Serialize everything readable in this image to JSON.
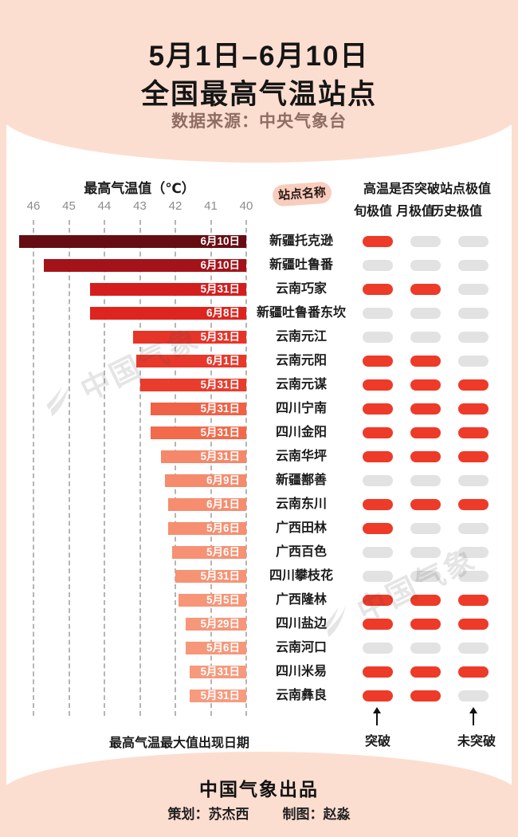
{
  "page": {
    "bg_color": "#FCDED0",
    "panel_color": "#FFFFFF"
  },
  "header": {
    "title_line1": "5月1日–6月10日",
    "title_line2": "全国最高气温站点",
    "subtitle": "数据来源：中央气象台"
  },
  "chart": {
    "axis_title": "最高气温值（℃）",
    "station_header": "站点名称",
    "breakthrough_header": "高温是否突破站点极值",
    "breakthrough_cols": [
      "旬极值",
      "月极值",
      "历史极值"
    ],
    "caption": "最高气温最大值出现日期",
    "legend": {
      "break": "突破",
      "no_break": "未突破"
    }
  },
  "chart_data": {
    "type": "bar",
    "orientation": "horizontal",
    "title": "5月1日–6月10日 全国最高气温站点",
    "xlabel": "最高气温值（℃）",
    "unit": "℃",
    "axis_ticks": [
      46,
      45,
      44,
      43,
      42,
      41,
      40
    ],
    "axis_range": [
      46,
      40
    ],
    "grid": "dashed-vertical",
    "pill_on_color": "#EE3A28",
    "pill_off_color": "#E2E2E2",
    "stations": [
      {
        "name": "新疆托克逊",
        "value": 46.4,
        "date": "6月10日",
        "color": "#660D13",
        "breakthrough": [
          true,
          false,
          false
        ]
      },
      {
        "name": "新疆吐鲁番",
        "value": 45.7,
        "date": "6月10日",
        "color": "#A4131A",
        "breakthrough": [
          false,
          false,
          false
        ]
      },
      {
        "name": "云南巧家",
        "value": 44.4,
        "date": "5月31日",
        "color": "#D41E1E",
        "breakthrough": [
          true,
          true,
          false
        ]
      },
      {
        "name": "新疆吐鲁番东坎",
        "value": 44.4,
        "date": "6月8日",
        "color": "#DE241F",
        "breakthrough": [
          false,
          false,
          false
        ]
      },
      {
        "name": "云南元江",
        "value": 43.2,
        "date": "5月31日",
        "color": "#E73428",
        "breakthrough": [
          false,
          false,
          false
        ]
      },
      {
        "name": "云南元阳",
        "value": 43.1,
        "date": "6月1日",
        "color": "#E8382B",
        "breakthrough": [
          true,
          true,
          false
        ]
      },
      {
        "name": "云南元谋",
        "value": 43.0,
        "date": "5月31日",
        "color": "#E93C2D",
        "breakthrough": [
          true,
          true,
          true
        ]
      },
      {
        "name": "四川宁南",
        "value": 42.7,
        "date": "5月31日",
        "color": "#F06246",
        "breakthrough": [
          true,
          true,
          true
        ]
      },
      {
        "name": "四川金阳",
        "value": 42.7,
        "date": "5月31日",
        "color": "#F16A4B",
        "breakthrough": [
          true,
          true,
          true
        ]
      },
      {
        "name": "云南华坪",
        "value": 42.4,
        "date": "5月31日",
        "color": "#F5886A",
        "breakthrough": [
          true,
          true,
          true
        ]
      },
      {
        "name": "新疆鄯善",
        "value": 42.3,
        "date": "6月9日",
        "color": "#F58A6C",
        "breakthrough": [
          false,
          false,
          false
        ]
      },
      {
        "name": "云南东川",
        "value": 42.2,
        "date": "6月1日",
        "color": "#F68D6F",
        "breakthrough": [
          true,
          true,
          true
        ]
      },
      {
        "name": "广西田林",
        "value": 42.2,
        "date": "5月6日",
        "color": "#F68F71",
        "breakthrough": [
          true,
          false,
          false
        ]
      },
      {
        "name": "广西百色",
        "value": 42.1,
        "date": "5月6日",
        "color": "#F69173",
        "breakthrough": [
          false,
          false,
          false
        ]
      },
      {
        "name": "四川攀枝花",
        "value": 42.0,
        "date": "5月31日",
        "color": "#F69375",
        "breakthrough": [
          false,
          false,
          false
        ]
      },
      {
        "name": "广西隆林",
        "value": 41.9,
        "date": "5月5日",
        "color": "#F79577",
        "breakthrough": [
          true,
          true,
          true
        ]
      },
      {
        "name": "四川盐边",
        "value": 41.7,
        "date": "5月29日",
        "color": "#F79679",
        "breakthrough": [
          true,
          true,
          true
        ]
      },
      {
        "name": "云南河口",
        "value": 41.7,
        "date": "5月6日",
        "color": "#F7977A",
        "breakthrough": [
          false,
          false,
          false
        ]
      },
      {
        "name": "四川米易",
        "value": 41.6,
        "date": "5月31日",
        "color": "#F7997C",
        "breakthrough": [
          true,
          true,
          true
        ]
      },
      {
        "name": "云南彝良",
        "value": 41.6,
        "date": "5月31日",
        "color": "#F89A7D",
        "breakthrough": [
          true,
          true,
          false
        ]
      }
    ]
  },
  "watermark": {
    "text": "中国气象"
  },
  "footer": {
    "brand": "中国气象出品",
    "credit_plan": "策划：苏杰西",
    "credit_design": "制图：赵淼"
  }
}
